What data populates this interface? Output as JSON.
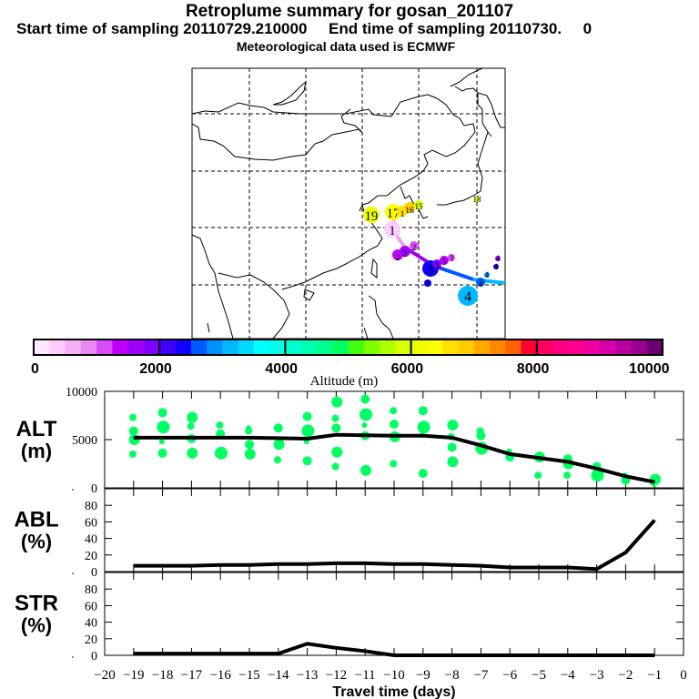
{
  "header": {
    "title": "Retroplume summary for gosan_201107",
    "subtitle": "Start time of sampling 20110729.210000     End time of sampling 20110730.     0",
    "met_note": "Meteorological data used is ECMWF"
  },
  "colorbar": {
    "label": "Altitude (m)",
    "ticks": [
      "0",
      "2000",
      "4000",
      "6000",
      "8000",
      "10000"
    ],
    "range": [
      0,
      10000
    ],
    "colors": [
      "#ffe8ff",
      "#ffccff",
      "#f5b0f5",
      "#e888f0",
      "#d84cf8",
      "#c000ff",
      "#a000f8",
      "#8000ff",
      "#4000ff",
      "#1000ff",
      "#0058ff",
      "#0090ff",
      "#00b8ff",
      "#00d8ff",
      "#00ffff",
      "#00ffe8",
      "#00ffd0",
      "#00ffb0",
      "#00ff90",
      "#00ff60",
      "#40ff10",
      "#80ff00",
      "#b0ff00",
      "#d8ff00",
      "#f0ff00",
      "#ffff00",
      "#ffe000",
      "#ffcc00",
      "#ffaa00",
      "#ff8800",
      "#ff6000",
      "#ff0030",
      "#ff0060",
      "#ff0080",
      "#ff0090",
      "#f000a0",
      "#d800a8",
      "#b800a0",
      "#980090",
      "#680070"
    ]
  },
  "map": {
    "trajectory_labels": [
      {
        "text": "19",
        "lon_idx": 0
      },
      {
        "text": "1",
        "lon_idx": 1
      },
      {
        "text": "2",
        "lon_idx": 2
      },
      {
        "text": "3",
        "lon_idx": 3
      },
      {
        "text": "4",
        "lon_idx": 4
      },
      {
        "text": "16",
        "lon_idx": 5
      },
      {
        "text": "15",
        "lon_idx": 6
      },
      {
        "text": "18",
        "lon_idx": 7
      }
    ]
  },
  "chart_data": [
    {
      "type": "line",
      "panel": "ALT",
      "ylabel": "ALT\n(m)",
      "ylabel_line1": "ALT",
      "ylabel_line2": "(m)",
      "ylim": [
        0,
        10000
      ],
      "yticks": [
        "10000",
        "5000",
        "0"
      ],
      "x": [
        -19,
        -18,
        -17,
        -16,
        -15,
        -14,
        -13,
        -12,
        -11,
        -10,
        -9,
        -8,
        -7,
        -6,
        -5,
        -4,
        -3,
        -2,
        -1
      ],
      "values": [
        5200,
        5200,
        5200,
        5200,
        5200,
        5150,
        5100,
        5500,
        5450,
        5400,
        5400,
        5200,
        4400,
        3500,
        3100,
        2700,
        2000,
        1200,
        600
      ],
      "bubbles": [
        {
          "x": -19,
          "alt": [
            7300,
            5900,
            5000,
            3500
          ]
        },
        {
          "x": -18,
          "alt": [
            7800,
            6300,
            4800,
            3600
          ]
        },
        {
          "x": -17,
          "alt": [
            7300,
            6400,
            5100,
            3600
          ]
        },
        {
          "x": -16,
          "alt": [
            6500,
            5600,
            3600
          ]
        },
        {
          "x": -15,
          "alt": [
            6200,
            4500,
            3500,
            5900
          ]
        },
        {
          "x": -14,
          "alt": [
            6200,
            4500,
            2900
          ]
        },
        {
          "x": -13,
          "alt": [
            7400,
            5900,
            4800,
            2800
          ]
        },
        {
          "x": -12,
          "alt": [
            8900,
            7200,
            6200,
            3700,
            2200
          ]
        },
        {
          "x": -11,
          "alt": [
            9200,
            7600,
            6500,
            5400,
            1800
          ]
        },
        {
          "x": -10,
          "alt": [
            8000,
            6600,
            5300,
            2500
          ]
        },
        {
          "x": -9,
          "alt": [
            8000,
            6300,
            5500,
            1500
          ]
        },
        {
          "x": -8,
          "alt": [
            6500,
            5300,
            4200,
            2700
          ]
        },
        {
          "x": -7,
          "alt": [
            5900,
            5400,
            4100
          ]
        },
        {
          "x": -6,
          "alt": [
            3800,
            3200
          ]
        },
        {
          "x": -5,
          "alt": [
            3200,
            1300
          ]
        },
        {
          "x": -4,
          "alt": [
            3000,
            2500,
            1300
          ]
        },
        {
          "x": -3,
          "alt": [
            2200,
            1300
          ]
        },
        {
          "x": -2,
          "alt": [
            1300,
            800
          ]
        },
        {
          "x": -1,
          "alt": [
            900,
            500
          ]
        }
      ],
      "bubble_color": "#00ff60"
    },
    {
      "type": "line",
      "panel": "ABL",
      "ylabel_line1": "ABL",
      "ylabel_line2": "(%)",
      "ylim": [
        0,
        100
      ],
      "yticks": [
        "80",
        "60",
        "40",
        "20",
        "0"
      ],
      "x": [
        -19,
        -18,
        -17,
        -16,
        -15,
        -14,
        -13,
        -12,
        -11,
        -10,
        -9,
        -8,
        -7,
        -6,
        -5,
        -4,
        -3,
        -2,
        -1
      ],
      "values": [
        7,
        7,
        7,
        8,
        8,
        9,
        9,
        10,
        10,
        9,
        9,
        8,
        7,
        5,
        5,
        5,
        3,
        23,
        62
      ]
    },
    {
      "type": "line",
      "panel": "STR",
      "ylabel_line1": "STR",
      "ylabel_line2": "(%)",
      "ylim": [
        0,
        100
      ],
      "yticks": [
        "80",
        "60",
        "40",
        "20",
        "0"
      ],
      "x": [
        -19,
        -18,
        -17,
        -16,
        -15,
        -14,
        -13,
        -12,
        -11,
        -10,
        -9,
        -8,
        -7,
        -6,
        -5,
        -4,
        -3,
        -2,
        -1
      ],
      "values": [
        2,
        2,
        2,
        2,
        2,
        2,
        14,
        9,
        5,
        0,
        0,
        0,
        0,
        0,
        0,
        0,
        0,
        0,
        0
      ],
      "xlabel": "Travel time (days)",
      "xlim": [
        -20,
        0
      ],
      "xticks": [
        "-20",
        "-19",
        "-18",
        "-17",
        "-16",
        "-15",
        "-14",
        "-13",
        "-12",
        "-11",
        "-10",
        "-9",
        "-8",
        "-7",
        "-6",
        "-5",
        "-4",
        "-3",
        "-2",
        "-1",
        "0"
      ]
    }
  ]
}
